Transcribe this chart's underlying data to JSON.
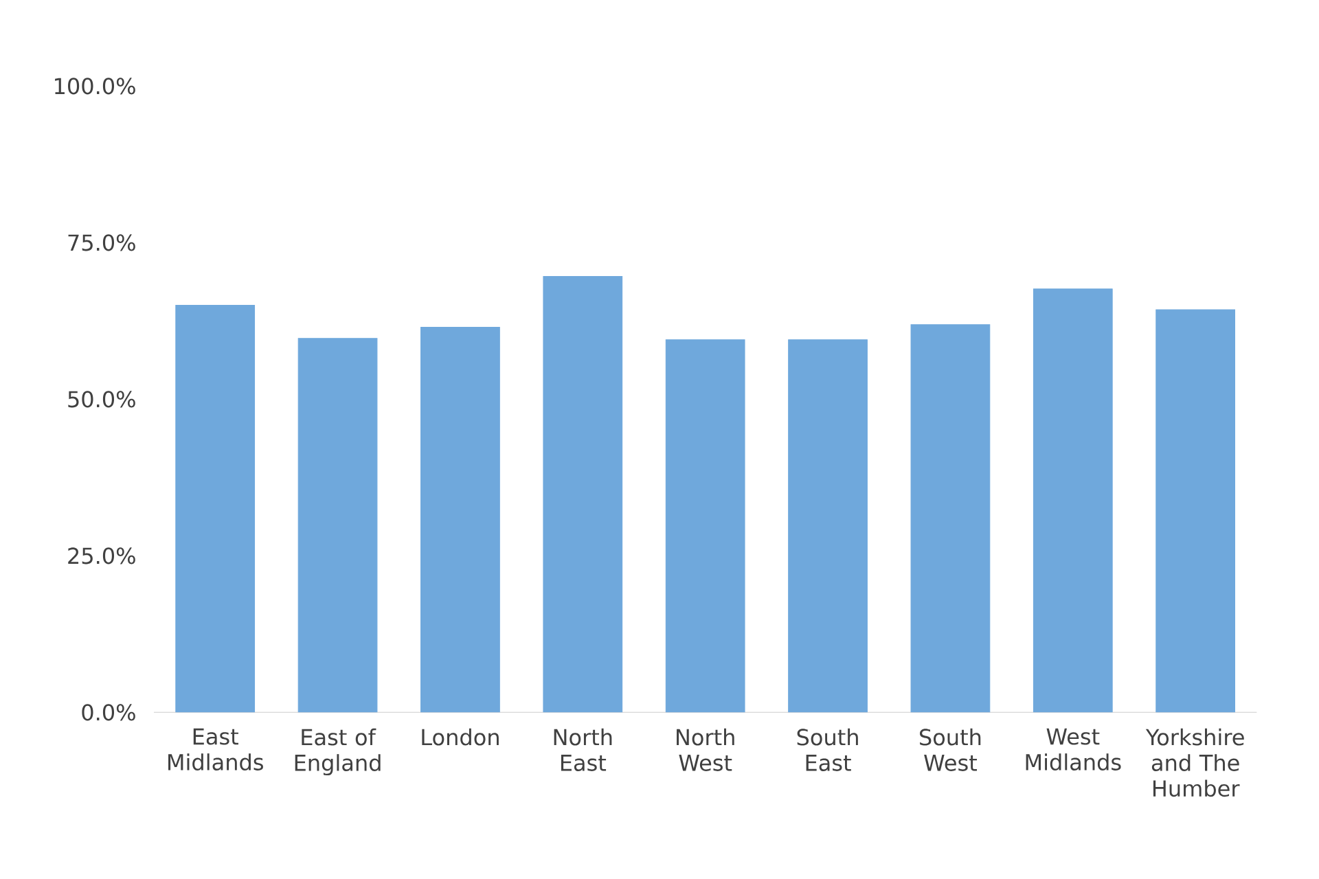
{
  "chart_data": {
    "type": "bar",
    "categories": [
      "East Midlands",
      "East of England",
      "London",
      "North East",
      "North West",
      "South East",
      "South West",
      "West Midlands",
      "Yorkshire and The Humber"
    ],
    "values": [
      65.0,
      59.7,
      61.5,
      69.6,
      59.5,
      59.5,
      61.9,
      67.6,
      64.3
    ],
    "color": "#6fa8dc",
    "ylim": [
      0,
      100
    ],
    "yticks": [
      {
        "value": 0,
        "label": "0.0%"
      },
      {
        "value": 25,
        "label": "25.0%"
      },
      {
        "value": 50,
        "label": "50.0%"
      },
      {
        "value": 75,
        "label": "75.0%"
      },
      {
        "value": 100,
        "label": "100.0%"
      }
    ]
  }
}
